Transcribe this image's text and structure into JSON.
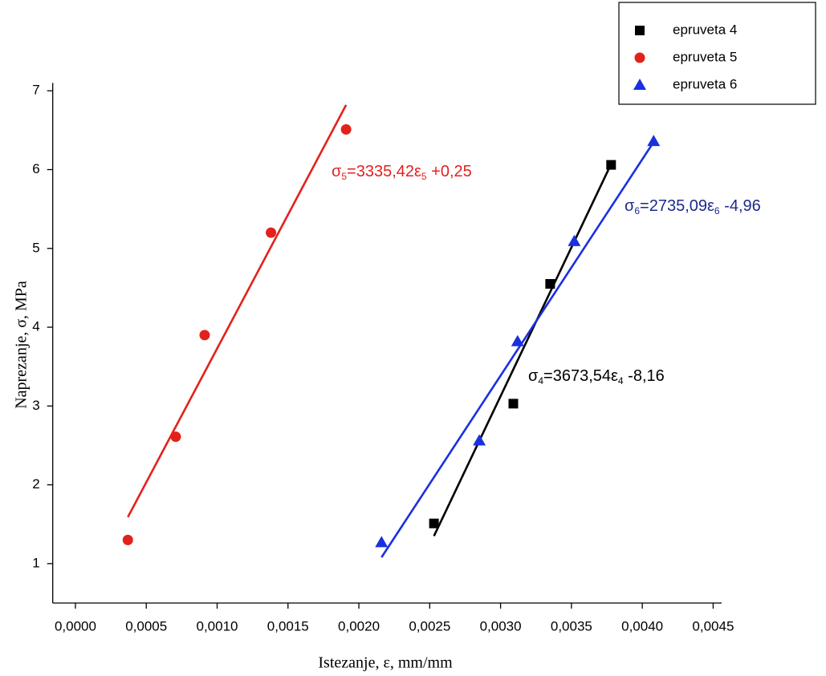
{
  "chart_data": {
    "type": "scatter",
    "xlabel": "Istezanje, ε, mm/mm",
    "ylabel": "Naprezanje, σ, MPa",
    "xlim": [
      -0.00016,
      0.00456
    ],
    "ylim": [
      0.5,
      7.1
    ],
    "xticks": [
      {
        "value": 0,
        "label": "0,0000"
      },
      {
        "value": 0.0005,
        "label": "0,0005"
      },
      {
        "value": 0.001,
        "label": "0,0010"
      },
      {
        "value": 0.0015,
        "label": "0,0015"
      },
      {
        "value": 0.002,
        "label": "0,0020"
      },
      {
        "value": 0.0025,
        "label": "0,0025"
      },
      {
        "value": 0.003,
        "label": "0,0030"
      },
      {
        "value": 0.0035,
        "label": "0,0035"
      },
      {
        "value": 0.004,
        "label": "0,0040"
      },
      {
        "value": 0.0045,
        "label": "0,0045"
      }
    ],
    "yticks": [
      1,
      2,
      3,
      4,
      5,
      6,
      7
    ],
    "legend": "top-right",
    "series": [
      {
        "name": "epruveta 4",
        "color": "#000000",
        "marker": "square",
        "x": [
          0.00253,
          0.00309,
          0.00335,
          0.00378
        ],
        "values": [
          1.51,
          3.03,
          4.55,
          6.06
        ],
        "fit": {
          "x": [
            0.00253,
            0.00378
          ],
          "values": [
            1.35,
            6.07
          ]
        }
      },
      {
        "name": "epruveta 5",
        "color": "#e3211c",
        "marker": "circle",
        "x": [
          0.00037,
          0.000708,
          0.000912,
          0.00138,
          0.00191
        ],
        "values": [
          1.3,
          2.61,
          3.9,
          5.2,
          6.51
        ],
        "fit": {
          "x": [
            0.00037,
            0.00191
          ],
          "values": [
            1.59,
            6.82
          ]
        }
      },
      {
        "name": "epruveta 6",
        "color": "#1a30e0",
        "marker": "triangle",
        "x": [
          0.00216,
          0.00285,
          0.00312,
          0.00352,
          0.00408
        ],
        "values": [
          1.27,
          2.56,
          3.82,
          5.09,
          6.36
        ],
        "fit": {
          "x": [
            0.00216,
            0.00408
          ],
          "values": [
            1.08,
            6.35
          ]
        }
      }
    ],
    "annotations": [
      {
        "color": "#000000",
        "parts": [
          "σ",
          "4",
          "=3673,54ε",
          "4",
          " -8,16"
        ]
      },
      {
        "color": "#e3211c",
        "parts": [
          "σ",
          "5",
          "=3335,42ε",
          "5",
          " +0,25"
        ]
      },
      {
        "color": "#1c2a8a",
        "parts": [
          "σ",
          "6",
          "=2735,09ε",
          "6",
          " -4,96"
        ]
      }
    ]
  }
}
